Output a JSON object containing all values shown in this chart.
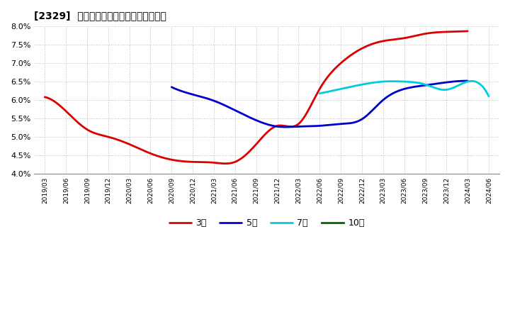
{
  "title": "[2329]  経常利益マージンの平均値の推移",
  "ylim": [
    0.04,
    0.08
  ],
  "yticks": [
    0.04,
    0.045,
    0.05,
    0.055,
    0.06,
    0.065,
    0.07,
    0.075,
    0.08
  ],
  "plot_bg_color": "#ffffff",
  "fig_bg_color": "#ffffff",
  "grid_color": "#aaaaaa",
  "line_3y_color": "#dd0000",
  "line_5y_color": "#0000cc",
  "line_7y_color": "#00ccdd",
  "line_10y_color": "#006600",
  "legend_labels": [
    "3年",
    "5年",
    "7年",
    "10年"
  ],
  "x_labels": [
    "2019/03",
    "2019/06",
    "2019/09",
    "2019/12",
    "2020/03",
    "2020/06",
    "2020/09",
    "2020/12",
    "2021/03",
    "2021/06",
    "2021/09",
    "2021/12",
    "2022/03",
    "2022/06",
    "2022/09",
    "2022/12",
    "2023/03",
    "2023/06",
    "2023/09",
    "2023/12",
    "2024/03",
    "2024/06"
  ],
  "data_3y": [
    0.0608,
    0.057,
    0.052,
    0.05,
    0.048,
    0.0455,
    0.0438,
    0.0432,
    0.043,
    0.0432,
    0.048,
    0.053,
    0.0535,
    0.063,
    0.07,
    0.074,
    0.076,
    0.0768,
    0.078,
    0.0785,
    0.0787,
    null
  ],
  "data_5y": [
    null,
    null,
    null,
    null,
    null,
    null,
    0.0635,
    0.0615,
    0.0598,
    0.0572,
    0.0545,
    0.0528,
    0.0528,
    0.053,
    0.0535,
    0.0548,
    0.06,
    0.063,
    0.064,
    0.0648,
    0.0652,
    null
  ],
  "data_7y": [
    null,
    null,
    null,
    null,
    null,
    null,
    null,
    null,
    null,
    null,
    null,
    null,
    null,
    0.0618,
    0.063,
    0.0642,
    0.065,
    0.065,
    0.0642,
    0.0628,
    0.065,
    0.061
  ],
  "data_10y": [
    null,
    null,
    null,
    null,
    null,
    null,
    null,
    null,
    null,
    null,
    null,
    null,
    null,
    null,
    null,
    null,
    null,
    null,
    null,
    null,
    null,
    null
  ]
}
